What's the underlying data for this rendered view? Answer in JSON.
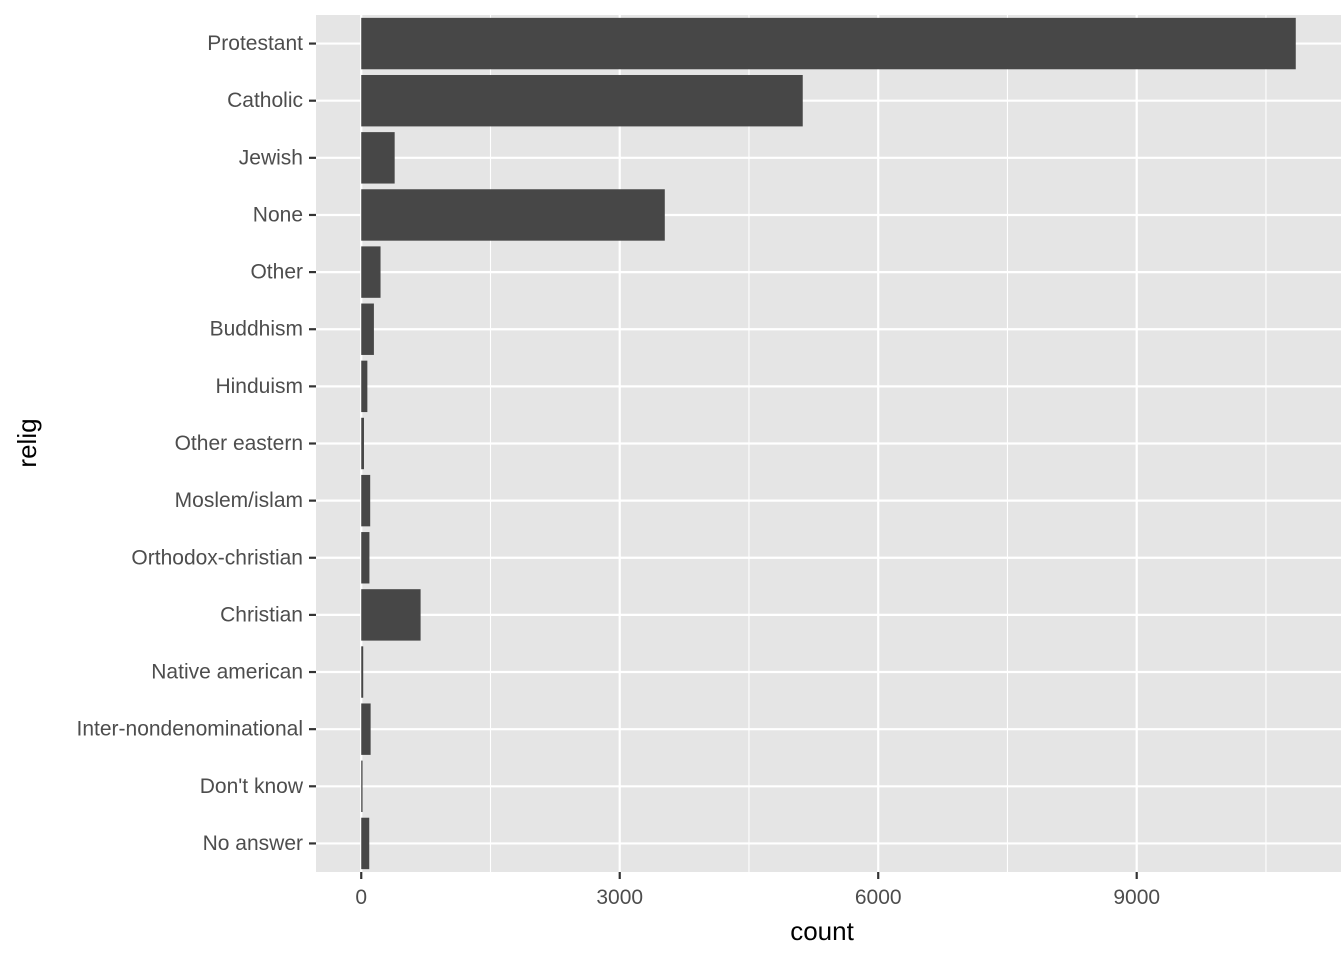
{
  "chart_data": {
    "type": "bar",
    "orientation": "horizontal",
    "xlabel": "count",
    "ylabel": "relig",
    "categories": [
      "Protestant",
      "Catholic",
      "Jewish",
      "None",
      "Other",
      "Buddhism",
      "Hinduism",
      "Other eastern",
      "Moslem/islam",
      "Orthodox-christian",
      "Christian",
      "Native american",
      "Inter-nondenominational",
      "Don't know",
      "No answer"
    ],
    "values": [
      10846,
      5124,
      388,
      3523,
      224,
      147,
      71,
      32,
      104,
      95,
      689,
      23,
      109,
      15,
      93
    ],
    "xlim": [
      -525,
      11371
    ],
    "xticks": [
      0,
      3000,
      6000,
      9000
    ],
    "xtick_labels": [
      "0",
      "3000",
      "6000",
      "9000"
    ],
    "grid": true,
    "legend": "none",
    "colors": {
      "panel_background": "#e5e5e5",
      "grid_line": "#ffffff",
      "bar_fill": "#474747",
      "tick_label": "#4d4d4d",
      "axis_title": "#000000"
    }
  }
}
